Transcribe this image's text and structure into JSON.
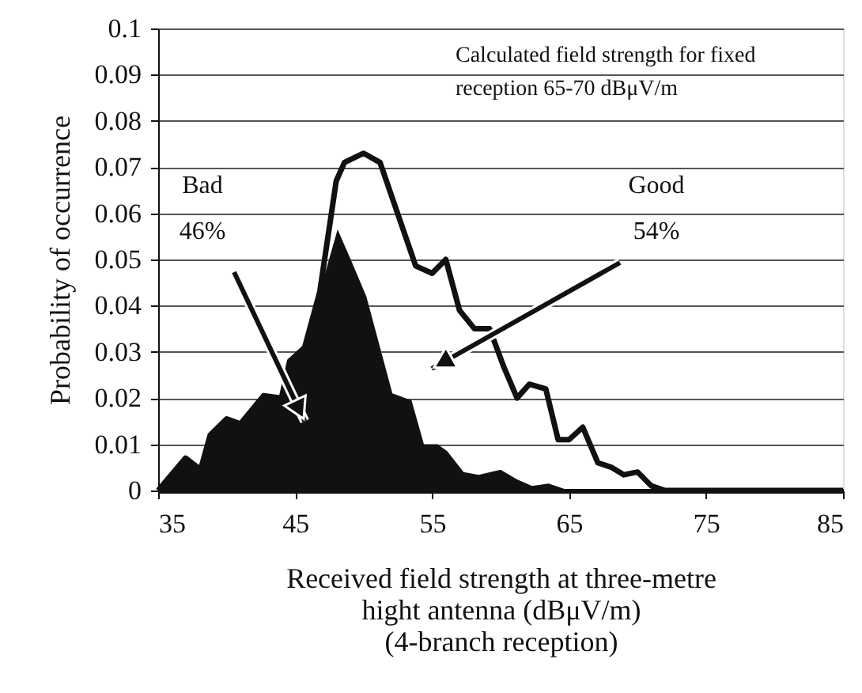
{
  "chart_data": {
    "type": "line",
    "xlabel": "Received field strength at three-metre\nhight antenna (dBμV/m)\n(4-branch reception)",
    "ylabel": "Probability of occurrence",
    "series": [
      {
        "color": "#111111",
        "x": [
          35,
          37,
          38.1,
          38.8,
          40,
          41,
          42.7,
          44,
          44.6,
          45.7,
          46.8,
          48,
          48.6,
          50,
          51.2,
          53.8,
          55,
          56,
          57,
          58.1,
          59.2,
          60.2,
          61.2,
          62.1,
          63.3,
          64.2,
          65,
          66,
          67.1,
          68.1,
          69,
          70,
          71,
          72,
          85
        ],
        "values": [
          0,
          0.007,
          0.0045,
          0.012,
          0.0155,
          0.0144,
          0.0205,
          0.02,
          0.028,
          0.031,
          0.043,
          0.067,
          0.071,
          0.073,
          0.071,
          0.0486,
          0.047,
          0.05,
          0.039,
          0.035,
          0.035,
          0.027,
          0.02,
          0.023,
          0.022,
          0.011,
          0.011,
          0.0137,
          0.006,
          0.005,
          0.0034,
          0.004,
          0.001,
          0,
          0
        ]
      },
      {
        "type": "area",
        "color": "#111111",
        "x": [
          35,
          37,
          38.1,
          38.8,
          40,
          41,
          42.7,
          44,
          44.6,
          45.7,
          46.8,
          48.1,
          49.2,
          50.2,
          52.1,
          53.5,
          54.4,
          55.4,
          56.1,
          57.3,
          58.4,
          60,
          61.2,
          62.3,
          63.5,
          65
        ],
        "values": [
          0,
          0.007,
          0.0045,
          0.012,
          0.0155,
          0.0144,
          0.0205,
          0.02,
          0.028,
          0.031,
          0.043,
          0.0565,
          0.049,
          0.042,
          0.021,
          0.0195,
          0.01,
          0.01,
          0.0085,
          0.004,
          0.0034,
          0.0045,
          0.0024,
          0.001,
          0.0015,
          0
        ]
      }
    ],
    "xlim": [
      35,
      85
    ],
    "xticks": [
      35,
      45,
      55,
      65,
      75,
      85
    ],
    "ylim": [
      0,
      0.1
    ],
    "yticks": [
      0,
      0.01,
      0.02,
      0.03,
      0.04,
      0.05,
      0.06,
      0.07,
      0.08,
      0.09,
      0.1
    ],
    "grid": "y",
    "line_style": "solid",
    "marker": "none",
    "annotations": [
      {
        "text": "Bad\n46%",
        "x": 45.7,
        "y": 0.015
      },
      "Good\n54%",
      "Calculated field strength for fixed\nreception 65-70 dBμV/m"
    ]
  }
}
